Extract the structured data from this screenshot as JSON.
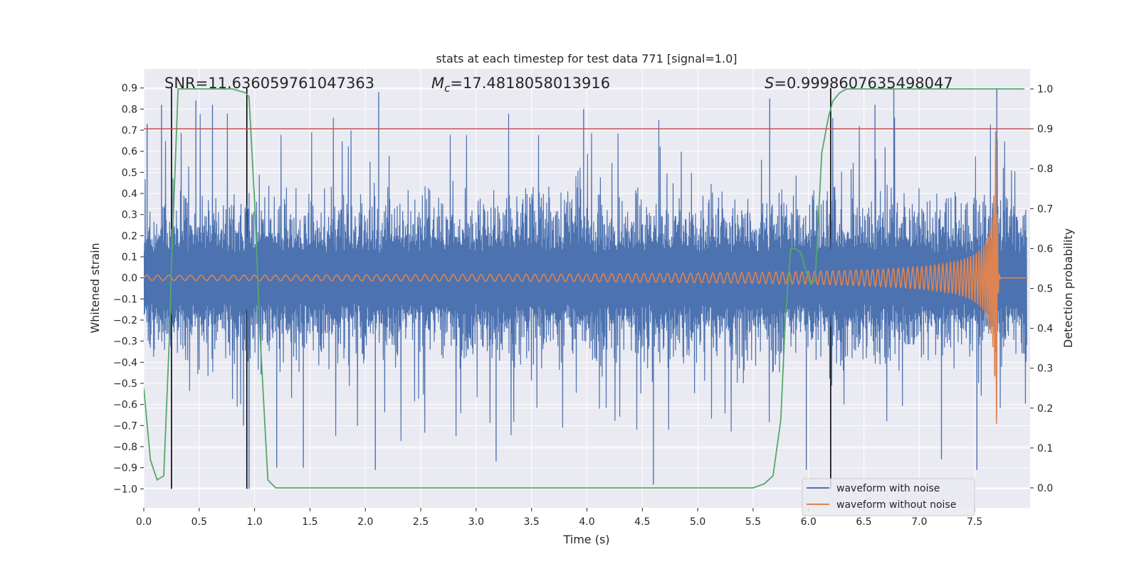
{
  "chart_data": {
    "type": "line",
    "title": "stats at each timestep for test data 771 [signal=1.0]",
    "xlabel": "Time (s)",
    "ylabel": "Whitened strain",
    "y2label": "Detection probability",
    "xlim": [
      0.0,
      8.0
    ],
    "ylim": [
      -1.09,
      0.99
    ],
    "y2lim": [
      -0.05,
      1.05
    ],
    "x_ticks": [
      0.0,
      0.5,
      1.0,
      1.5,
      2.0,
      2.5,
      3.0,
      3.5,
      4.0,
      4.5,
      5.0,
      5.5,
      6.0,
      6.5,
      7.0,
      7.5
    ],
    "x_tick_labels": [
      "0.0",
      "0.5",
      "1.0",
      "1.5",
      "2.0",
      "2.5",
      "3.0",
      "3.5",
      "4.0",
      "4.5",
      "5.0",
      "5.5",
      "6.0",
      "6.5",
      "7.0",
      "7.5"
    ],
    "y_ticks": [
      0.9,
      0.8,
      0.7,
      0.6,
      0.5,
      0.4,
      0.3,
      0.2,
      0.1,
      0.0,
      -0.1,
      -0.2,
      -0.3,
      -0.4,
      -0.5,
      -0.6,
      -0.7,
      -0.8,
      -0.9,
      -1.0
    ],
    "y_tick_labels": [
      "0.9",
      "0.8",
      "0.7",
      "0.6",
      "0.5",
      "0.4",
      "0.3",
      "0.2",
      "0.1",
      "0.0",
      "−0.1",
      "−0.2",
      "−0.3",
      "−0.4",
      "−0.5",
      "−0.6",
      "−0.7",
      "−0.8",
      "−0.9",
      "−1.0"
    ],
    "y2_ticks": [
      1.0,
      0.9,
      0.8,
      0.7,
      0.6,
      0.5,
      0.4,
      0.3,
      0.2,
      0.1,
      0.0
    ],
    "y2_tick_labels": [
      "1.0",
      "0.9",
      "0.8",
      "0.7",
      "0.6",
      "0.5",
      "0.4",
      "0.3",
      "0.2",
      "0.1",
      "0.0"
    ],
    "grid": true,
    "annotations": {
      "snr": "SNR=11.636059761047363",
      "mc_symbol": "M",
      "mc_sub": "c",
      "mc_value": "=17.4818058013916",
      "s_symbol": "S",
      "s_value": "=0.9998607635498047"
    },
    "threshold": {
      "axis": "y2",
      "value": 0.9,
      "color": "#c44e52"
    },
    "vertical_markers": {
      "x": [
        0.25,
        0.93,
        6.2
      ],
      "ymin": -1.0,
      "ymax": 0.9,
      "color": "#000000"
    },
    "series": [
      {
        "name": "waveform with noise",
        "axis": "y",
        "color": "#4c72b0",
        "render": "dense-noise",
        "typical_range": [
          -0.45,
          0.5
        ],
        "peak_range": [
          -1.0,
          0.9
        ],
        "spikes": [
          {
            "x": 0.03,
            "y": 0.73
          },
          {
            "x": 0.16,
            "y": 0.82
          },
          {
            "x": 0.47,
            "y": 0.84
          },
          {
            "x": 0.62,
            "y": 0.82
          },
          {
            "x": 0.9,
            "y": -0.7
          },
          {
            "x": 0.95,
            "y": -1.0
          },
          {
            "x": 1.2,
            "y": -0.9
          },
          {
            "x": 1.44,
            "y": -0.9
          },
          {
            "x": 2.09,
            "y": -0.91
          },
          {
            "x": 2.12,
            "y": 0.88
          },
          {
            "x": 3.18,
            "y": -0.87
          },
          {
            "x": 3.97,
            "y": 0.8
          },
          {
            "x": 4.6,
            "y": -0.98
          },
          {
            "x": 5.65,
            "y": 0.85
          },
          {
            "x": 5.98,
            "y": -0.91
          },
          {
            "x": 6.6,
            "y": 0.82
          },
          {
            "x": 7.2,
            "y": -0.86
          },
          {
            "x": 7.52,
            "y": -0.91
          },
          {
            "x": 7.7,
            "y": 0.9
          },
          {
            "x": 6.77,
            "y": 0.9
          }
        ]
      },
      {
        "name": "waveform without noise",
        "axis": "y",
        "color": "#dd8452",
        "render": "chirp",
        "x_merger": 7.7,
        "x_end": 7.98,
        "amp_start": 0.012,
        "amp_peak": 0.7,
        "freq_start": 10,
        "freq_peak": 60
      },
      {
        "name": "detection probability",
        "axis": "y2",
        "color": "#55a868",
        "x": [
          0.0,
          0.06,
          0.12,
          0.18,
          0.23,
          0.25,
          0.31,
          0.6,
          0.8,
          0.92,
          0.95,
          1.0,
          1.05,
          1.12,
          1.19,
          5.0,
          5.5,
          5.6,
          5.68,
          5.75,
          5.79,
          5.84,
          5.88,
          5.93,
          5.97,
          6.02,
          6.06,
          6.12,
          6.18,
          6.22,
          6.28,
          6.34,
          7.95
        ],
        "y": [
          0.25,
          0.07,
          0.02,
          0.03,
          0.37,
          0.56,
          1.0,
          1.0,
          1.0,
          0.99,
          0.98,
          0.72,
          0.38,
          0.02,
          0.0,
          0.0,
          0.0,
          0.01,
          0.03,
          0.17,
          0.42,
          0.6,
          0.6,
          0.59,
          0.55,
          0.51,
          0.52,
          0.84,
          0.93,
          0.97,
          0.99,
          1.0,
          1.0
        ]
      }
    ],
    "legend": {
      "position": "lower-right",
      "entries": [
        {
          "label": "waveform with noise",
          "color": "#4c72b0"
        },
        {
          "label": "waveform without noise",
          "color": "#dd8452"
        }
      ]
    },
    "colors": {
      "axes_bg": "#eaeaf2",
      "grid": "#ffffff",
      "text": "#262626"
    }
  }
}
